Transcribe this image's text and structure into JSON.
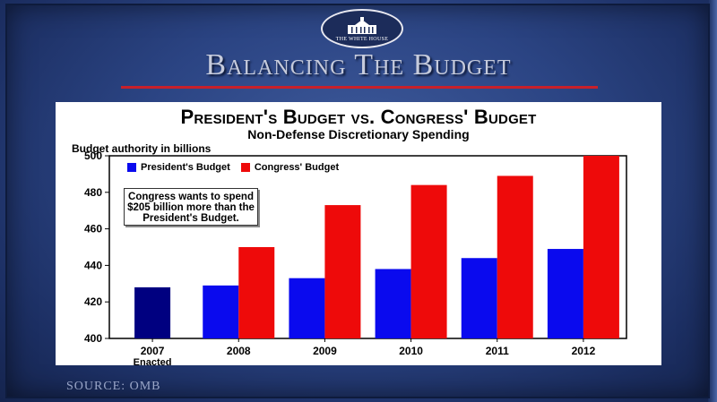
{
  "seal": {
    "text": "THE WHITE HOUSE"
  },
  "slide_title": "Balancing The Budget",
  "source": "SOURCE: OMB",
  "annotation": "Congress wants to spend $205 billion more than the President's Budget.",
  "colors": {
    "president": "#0a0aee",
    "congress": "#ee0a0a",
    "enacted": "#000080"
  },
  "chart_data": {
    "type": "bar",
    "title": "President's Budget vs. Congress' Budget",
    "subtitle": "Non-Defense Discretionary Spending",
    "ylabel": "Budget authority in billions",
    "xlabel": "",
    "categories": [
      "2007",
      "2008",
      "2009",
      "2010",
      "2011",
      "2012"
    ],
    "category_sublabels": [
      "Enacted",
      "",
      "",
      "",
      "",
      ""
    ],
    "series": [
      {
        "name": "President's Budget",
        "values": [
          428,
          429,
          433,
          438,
          444,
          449
        ]
      },
      {
        "name": "Congress' Budget",
        "values": [
          null,
          450,
          473,
          484,
          489,
          500
        ]
      }
    ],
    "ylim": [
      400,
      500
    ],
    "yticks": [
      400,
      420,
      440,
      460,
      480,
      500
    ],
    "legend": "top-left",
    "grid": false
  }
}
